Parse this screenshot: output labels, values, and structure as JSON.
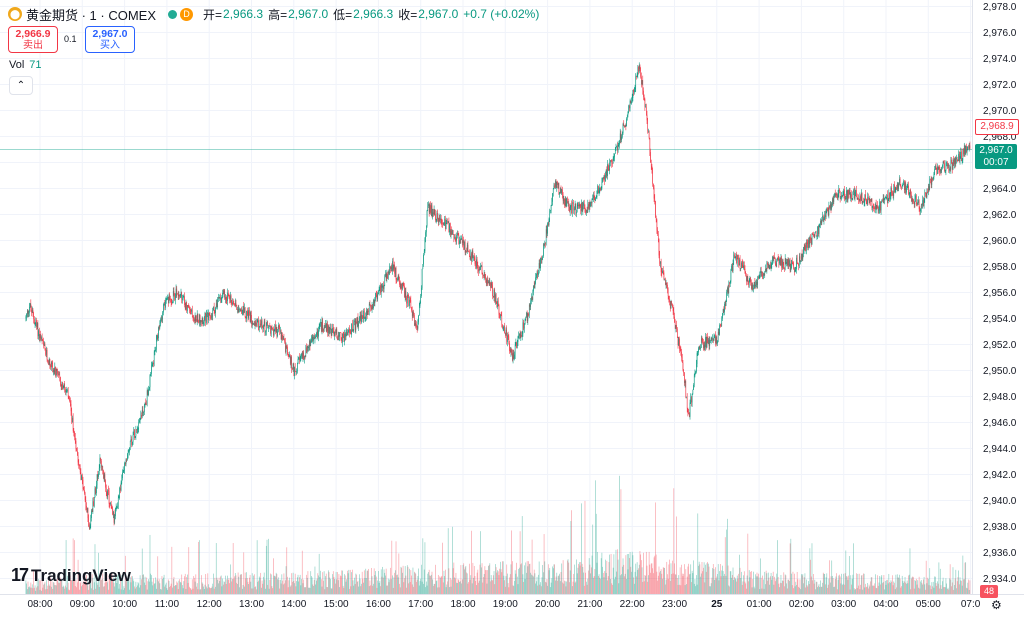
{
  "header": {
    "symbol_icon": "gold-coin-icon",
    "title": "黄金期货 · 1 · COMEX",
    "interval_badge": "D",
    "open_label": "开=",
    "open_value": "2,966.3",
    "high_label": "高=",
    "high_value": "2,967.0",
    "low_label": "低=",
    "low_value": "2,966.3",
    "close_label": "收=",
    "close_value": "2,967.0",
    "change_value": "+0.7 (+0.02%)"
  },
  "trade": {
    "sell_price": "2,966.9",
    "sell_label": "卖出",
    "spread": "0.1",
    "buy_price": "2,967.0",
    "buy_label": "买入"
  },
  "volume_legend": {
    "label": "Vol",
    "value": "71"
  },
  "price_tags": {
    "ask": "2,968.9",
    "last": "2,967.0",
    "countdown": "00:07",
    "volume": "48"
  },
  "branding": {
    "logo_mark": "17",
    "logo_text": "TradingView"
  },
  "colors": {
    "up": "#089981",
    "down": "#f23645",
    "grid": "#f0f3fa",
    "last_line": "#22ab94"
  },
  "chart_data": {
    "type": "candlestick",
    "x_tick_labels": [
      "08:00",
      "09:00",
      "10:00",
      "11:00",
      "12:00",
      "13:00",
      "14:00",
      "15:00",
      "16:00",
      "17:00",
      "18:00",
      "19:00",
      "20:00",
      "21:00",
      "22:00",
      "23:00",
      "25",
      "01:00",
      "02:00",
      "03:00",
      "04:00",
      "05:00",
      "07:0"
    ],
    "y_tick_labels": [
      "2,978.0",
      "2,976.0",
      "2,974.0",
      "2,972.0",
      "2,970.0",
      "2,968.0",
      "2,966.0",
      "2,964.0",
      "2,962.0",
      "2,960.0",
      "2,958.0",
      "2,956.0",
      "2,954.0",
      "2,952.0",
      "2,950.0",
      "2,948.0",
      "2,946.0",
      "2,944.0",
      "2,942.0",
      "2,940.0",
      "2,938.0",
      "2,936.0",
      "2,934.0"
    ],
    "ylim": [
      2933.2,
      2978.6
    ],
    "grid": true,
    "price_path": [
      {
        "t": "07:40",
        "price": 2954.0
      },
      {
        "t": "07:45",
        "price": 2955.0
      },
      {
        "t": "08:10",
        "price": 2951.0
      },
      {
        "t": "08:40",
        "price": 2948.0
      },
      {
        "t": "09:10",
        "price": 2938.0
      },
      {
        "t": "09:25",
        "price": 2943.0
      },
      {
        "t": "09:45",
        "price": 2938.5
      },
      {
        "t": "10:05",
        "price": 2944.0
      },
      {
        "t": "10:30",
        "price": 2947.5
      },
      {
        "t": "10:55",
        "price": 2955.0
      },
      {
        "t": "11:15",
        "price": 2956.0
      },
      {
        "t": "11:40",
        "price": 2954.0
      },
      {
        "t": "12:00",
        "price": 2954.0
      },
      {
        "t": "12:20",
        "price": 2956.0
      },
      {
        "t": "13:10",
        "price": 2953.5
      },
      {
        "t": "13:40",
        "price": 2953.0
      },
      {
        "t": "14:00",
        "price": 2950.0
      },
      {
        "t": "14:40",
        "price": 2953.5
      },
      {
        "t": "15:10",
        "price": 2952.5
      },
      {
        "t": "15:45",
        "price": 2954.5
      },
      {
        "t": "16:20",
        "price": 2958.0
      },
      {
        "t": "16:45",
        "price": 2955.0
      },
      {
        "t": "16:55",
        "price": 2953.0
      },
      {
        "t": "17:10",
        "price": 2962.5
      },
      {
        "t": "17:40",
        "price": 2961.0
      },
      {
        "t": "18:10",
        "price": 2959.0
      },
      {
        "t": "18:40",
        "price": 2956.5
      },
      {
        "t": "19:00",
        "price": 2953.0
      },
      {
        "t": "19:10",
        "price": 2951.0
      },
      {
        "t": "19:30",
        "price": 2954.0
      },
      {
        "t": "19:55",
        "price": 2959.5
      },
      {
        "t": "20:10",
        "price": 2964.5
      },
      {
        "t": "20:30",
        "price": 2962.5
      },
      {
        "t": "21:00",
        "price": 2962.5
      },
      {
        "t": "21:30",
        "price": 2966.0
      },
      {
        "t": "21:50",
        "price": 2969.0
      },
      {
        "t": "22:10",
        "price": 2973.5
      },
      {
        "t": "22:20",
        "price": 2970.0
      },
      {
        "t": "22:40",
        "price": 2958.0
      },
      {
        "t": "22:55",
        "price": 2955.0
      },
      {
        "t": "23:10",
        "price": 2951.0
      },
      {
        "t": "23:20",
        "price": 2946.5
      },
      {
        "t": "23:35",
        "price": 2952.0
      },
      {
        "t": "24:00",
        "price": 2952.5
      },
      {
        "t": "24:10",
        "price": 2954.5
      },
      {
        "t": "24:25",
        "price": 2959.0
      },
      {
        "t": "24:50",
        "price": 2956.5
      },
      {
        "t": "25:20",
        "price": 2958.5
      },
      {
        "t": "25:50",
        "price": 2958.0
      },
      {
        "t": "26:20",
        "price": 2960.5
      },
      {
        "t": "26:50",
        "price": 2963.5
      },
      {
        "t": "27:20",
        "price": 2963.5
      },
      {
        "t": "27:50",
        "price": 2962.5
      },
      {
        "t": "28:20",
        "price": 2964.5
      },
      {
        "t": "28:50",
        "price": 2962.5
      },
      {
        "t": "29:10",
        "price": 2965.5
      },
      {
        "t": "29:40",
        "price": 2966.0
      },
      {
        "t": "30:00",
        "price": 2967.5
      },
      {
        "t": "30:15",
        "price": 2969.0
      },
      {
        "t": "30:20",
        "price": 2967.0
      }
    ],
    "volume_ylim": [
      0,
      150
    ],
    "volume_profile": [
      {
        "t": "07:40",
        "typical": 8,
        "spike": 30
      },
      {
        "t": "09:00",
        "typical": 12,
        "spike": 55
      },
      {
        "t": "11:00",
        "typical": 12,
        "spike": 55
      },
      {
        "t": "15:00",
        "typical": 14,
        "spike": 45
      },
      {
        "t": "17:00",
        "typical": 18,
        "spike": 60
      },
      {
        "t": "20:00",
        "typical": 20,
        "spike": 75
      },
      {
        "t": "22:00",
        "typical": 28,
        "spike": 130
      },
      {
        "t": "23:00",
        "typical": 22,
        "spike": 95
      },
      {
        "t": "25:00",
        "typical": 14,
        "spike": 50
      },
      {
        "t": "28:00",
        "typical": 12,
        "spike": 45
      },
      {
        "t": "30:20",
        "typical": 10,
        "spike": 35
      }
    ]
  }
}
